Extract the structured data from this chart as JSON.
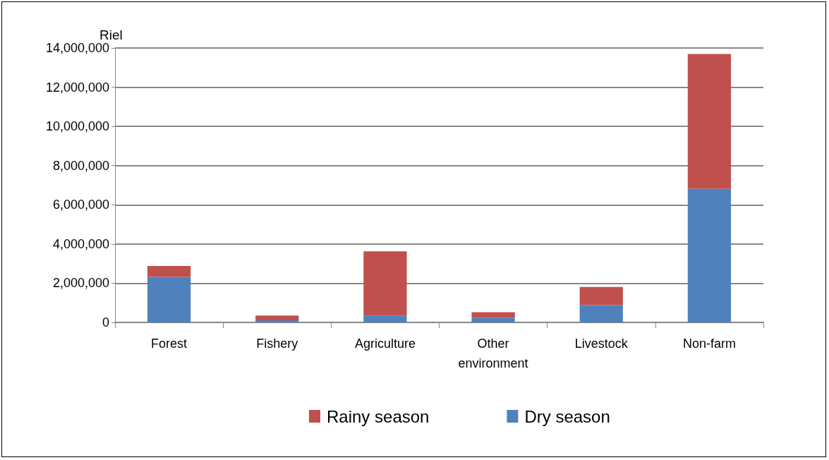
{
  "chart_data": {
    "type": "bar",
    "stacked": true,
    "ylabel": "Riel",
    "categories": [
      "Forest",
      "Fishery",
      "Agriculture",
      "Other environment",
      "Livestock",
      "Non-farm"
    ],
    "series": [
      {
        "name": "Dry season",
        "color": "#4f81bd",
        "values": [
          2320000,
          110000,
          350000,
          240000,
          880000,
          6820000
        ]
      },
      {
        "name": "Rainy season",
        "color": "#c0504d",
        "values": [
          560000,
          240000,
          3280000,
          280000,
          930000,
          6870000
        ]
      }
    ],
    "ylim": [
      0,
      14000000
    ],
    "yticks": [
      0,
      {
        "value": 2000000,
        "label": "2,000,000"
      },
      {
        "value": 4000000,
        "label": "4,000,000"
      },
      {
        "value": 6000000,
        "label": "6,000,000"
      },
      {
        "value": 8000000,
        "label": "8,000,000"
      },
      {
        "value": 10000000,
        "label": "10,000,000"
      },
      {
        "value": 12000000,
        "label": "12,000,000"
      },
      {
        "value": 14000000,
        "label": "14,000,000"
      }
    ],
    "grid": "y",
    "legend": "bottom"
  }
}
